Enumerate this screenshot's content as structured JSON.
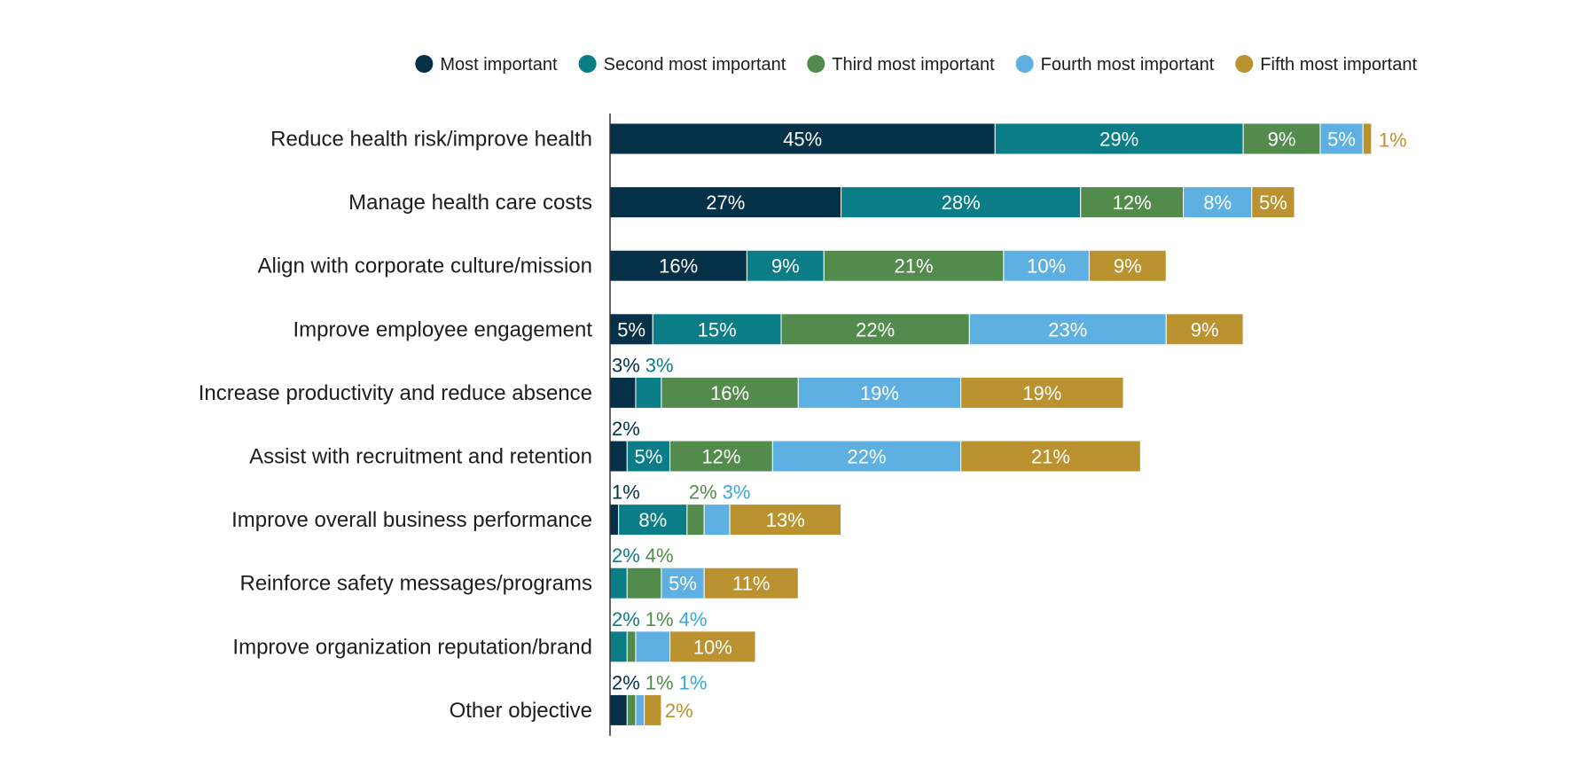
{
  "chart_data": {
    "type": "bar",
    "orientation": "horizontal",
    "stacked": true,
    "title": "",
    "xlabel": "",
    "ylabel": "",
    "xlim": [
      0,
      100
    ],
    "legend_position": "top-right",
    "grid": false,
    "categories": [
      "Reduce health risk/improve health",
      "Manage health care costs",
      "Align with corporate culture/mission",
      "Improve employee engagement",
      "Increase productivity and reduce absence",
      "Assist with recruitment and retention",
      "Improve overall business performance",
      "Reinforce safety messages/programs",
      "Improve organization reputation/brand",
      "Other objective"
    ],
    "series": [
      {
        "name": "Most important",
        "color": "#043048",
        "values": [
          45,
          27,
          16,
          5,
          3,
          2,
          1,
          0,
          0,
          2
        ],
        "labels": [
          "45%",
          "27%",
          "16%",
          "5%",
          "3%",
          "2%",
          "1%",
          "",
          "",
          "2%"
        ]
      },
      {
        "name": "Second most important",
        "color": "#0b7d86",
        "values": [
          29,
          28,
          9,
          15,
          3,
          5,
          8,
          2,
          2,
          0
        ],
        "labels": [
          "29%",
          "28%",
          "9%",
          "15%",
          "3%",
          "5%",
          "8%",
          "2%",
          "2%",
          ""
        ]
      },
      {
        "name": "Third most important",
        "color": "#528b4c",
        "values": [
          9,
          12,
          21,
          22,
          16,
          12,
          2,
          4,
          1,
          1
        ],
        "labels": [
          "9%",
          "12%",
          "21%",
          "22%",
          "16%",
          "12%",
          "2%",
          "4%",
          "1%",
          "1%"
        ]
      },
      {
        "name": "Fourth most important",
        "color": "#5eb0e3",
        "values": [
          5,
          8,
          10,
          23,
          19,
          22,
          3,
          5,
          4,
          1
        ],
        "labels": [
          "5%",
          "8%",
          "10%",
          "23%",
          "19%",
          "22%",
          "3%",
          "5%",
          "4%",
          "1%"
        ]
      },
      {
        "name": "Fifth most important",
        "color": "#ba922f",
        "values": [
          1,
          5,
          9,
          9,
          19,
          21,
          13,
          11,
          10,
          2
        ],
        "labels": [
          "1%",
          "5%",
          "9%",
          "9%",
          "19%",
          "21%",
          "13%",
          "11%",
          "10%",
          "2%"
        ]
      }
    ]
  }
}
